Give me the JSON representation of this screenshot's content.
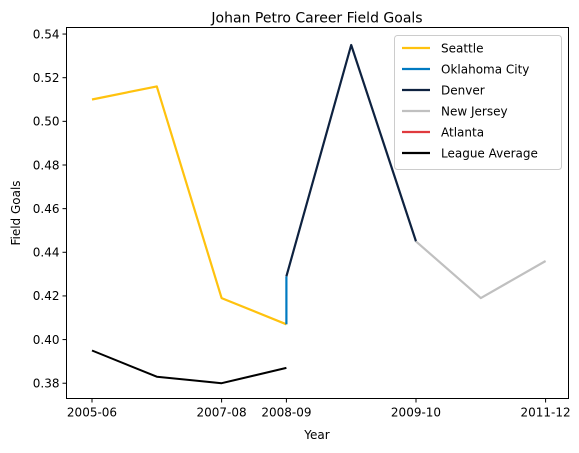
{
  "chart_data": {
    "type": "line",
    "title": "Johan Petro Career Field Goals",
    "xlabel": "Year",
    "ylabel": "Field Goals",
    "x_ticks": [
      "2005-06",
      "2007-08",
      "2008-09",
      "2009-10",
      "2011-12"
    ],
    "y_ticks": [
      "0.38",
      "0.40",
      "0.42",
      "0.44",
      "0.46",
      "0.48",
      "0.50",
      "0.52",
      "0.54"
    ],
    "ylim": [
      0.373,
      0.543
    ],
    "grid": false,
    "legend_position": "top-right",
    "series": [
      {
        "name": "Seattle",
        "color": "#FFC20E",
        "points": [
          [
            0,
            0.51
          ],
          [
            1,
            0.516
          ],
          [
            2,
            0.419
          ],
          [
            3,
            0.407
          ]
        ]
      },
      {
        "name": "Oklahoma City",
        "color": "#007AC1",
        "points": [
          [
            3,
            0.407
          ],
          [
            3,
            0.429
          ]
        ]
      },
      {
        "name": "Denver",
        "color": "#0E2240",
        "points": [
          [
            3,
            0.429
          ],
          [
            4,
            0.535
          ],
          [
            5,
            0.445
          ]
        ]
      },
      {
        "name": "New Jersey",
        "color": "#C0C0C0",
        "points": [
          [
            5,
            0.445
          ],
          [
            6,
            0.419
          ],
          [
            7,
            0.436
          ]
        ]
      },
      {
        "name": "Atlanta",
        "color": "#E03A3E",
        "points": []
      },
      {
        "name": "League Average",
        "color": "#000000",
        "points": [
          [
            0,
            0.395
          ],
          [
            1,
            0.383
          ],
          [
            2,
            0.38
          ],
          [
            3,
            0.387
          ]
        ]
      }
    ]
  }
}
